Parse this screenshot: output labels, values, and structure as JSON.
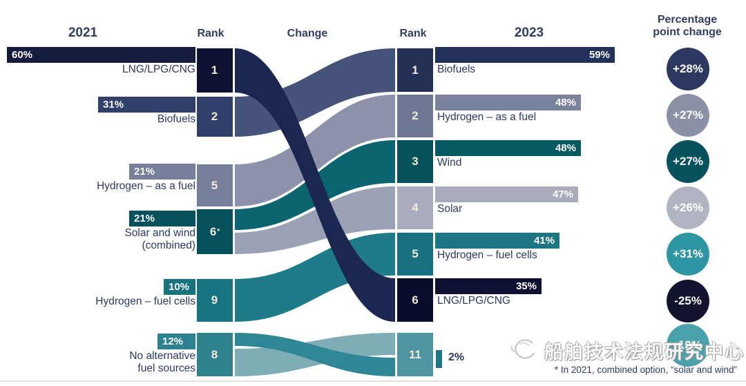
{
  "header": {
    "left_year": "2021",
    "left_rank": "Rank",
    "change": "Change",
    "right_rank": "Rank",
    "right_year": "2023",
    "pct_change_line1": "Percentage",
    "pct_change_line2": "point change"
  },
  "left_rows": [
    {
      "value": 60,
      "value_label": "60%",
      "name": "LNG/LPG/CNG",
      "name2": "",
      "rank": "1",
      "rank_sup": ""
    },
    {
      "value": 31,
      "value_label": "31%",
      "name": "Biofuels",
      "name2": "",
      "rank": "2",
      "rank_sup": ""
    },
    {
      "value": 21,
      "value_label": "21%",
      "name": "Hydrogen – as a fuel",
      "name2": "",
      "rank": "5",
      "rank_sup": ""
    },
    {
      "value": 21,
      "value_label": "21%",
      "name": "Solar and wind",
      "name2": "(combined)",
      "rank": "6",
      "rank_sup": "*"
    },
    {
      "value": 10,
      "value_label": "10%",
      "name": "Hydrogen – fuel cells",
      "name2": "",
      "rank": "9",
      "rank_sup": ""
    },
    {
      "value": 12,
      "value_label": "12%",
      "name": "No alternative",
      "name2": "fuel sources",
      "rank": "8",
      "rank_sup": ""
    }
  ],
  "right_rows": [
    {
      "rank": "1",
      "value": 59,
      "value_label": "59%",
      "name": "Biofuels"
    },
    {
      "rank": "2",
      "value": 48,
      "value_label": "48%",
      "name": "Hydrogen – as a fuel"
    },
    {
      "rank": "3",
      "value": 48,
      "value_label": "48%",
      "name": "Wind"
    },
    {
      "rank": "4",
      "value": 47,
      "value_label": "47%",
      "name": "Solar"
    },
    {
      "rank": "5",
      "value": 41,
      "value_label": "41%",
      "name": "Hydrogen – fuel cells"
    },
    {
      "rank": "6",
      "value": 35,
      "value_label": "35%",
      "name": "LNG/LPG/CNG"
    },
    {
      "rank": "11",
      "value": 2,
      "value_label": "2%",
      "name": ""
    }
  ],
  "pct_changes": [
    "+28%",
    "+27%",
    "+27%",
    "+26%",
    "+31%",
    "-25%",
    "-10%"
  ],
  "footnote": "* In 2021, combined option, “solar and wind”",
  "watermark_text": "船舶技术法规研究中心",
  "colors": {
    "left_bars": [
      "#161b40",
      "#31406a",
      "#777e99",
      "#07515c",
      "#187380",
      "#2e8290"
    ],
    "left_boxes": [
      "#0d1132",
      "#31406a",
      "#777e99",
      "#07515c",
      "#187380",
      "#2e8290"
    ],
    "right_bars": [
      "#23305a",
      "#7b829e",
      "#055a64",
      "#a7abbc",
      "#1b7583",
      "#0d1031",
      "#1d7684"
    ],
    "right_boxes": [
      "#253057",
      "#6f7793",
      "#07515c",
      "#a7abbc",
      "#17717f",
      "#0a0d2c",
      "#4e96a2"
    ],
    "circles": [
      "#2c3860",
      "#8a90a6",
      "#07525d",
      "#b1b4c2",
      "#2e95a2",
      "#12142f",
      "#4aa0ab"
    ],
    "flows": {
      "a": "#1b2750",
      "b": "#46547c",
      "c": "#8b92a9",
      "d": "#0c6470",
      "e": "#9ba1b5",
      "f": "#1f7b8a",
      "g_dark": "#2f8795",
      "g_light": "#7fadb6"
    }
  },
  "chart_data": {
    "type": "sankey",
    "columns": [
      "2021",
      "Rank",
      "Change",
      "Rank",
      "2023",
      "Percentage point change"
    ],
    "items": [
      {
        "fuel": "LNG/LPG/CNG",
        "pct_2021": 60,
        "rank_2021": "1",
        "pct_2023": 35,
        "rank_2023": "6",
        "pp_change": "-25%"
      },
      {
        "fuel": "Biofuels",
        "pct_2021": 31,
        "rank_2021": "2",
        "pct_2023": 59,
        "rank_2023": "1",
        "pp_change": "+28%"
      },
      {
        "fuel": "Hydrogen – as a fuel",
        "pct_2021": 21,
        "rank_2021": "5",
        "pct_2023": 48,
        "rank_2023": "2",
        "pp_change": "+27%"
      },
      {
        "fuel": "Wind",
        "pct_2021": 21,
        "rank_2021": "6*",
        "pct_2023": 48,
        "rank_2023": "3",
        "pp_change": "+27%"
      },
      {
        "fuel": "Solar",
        "pct_2021": 21,
        "rank_2021": "6*",
        "pct_2023": 47,
        "rank_2023": "4",
        "pp_change": "+26%"
      },
      {
        "fuel": "Hydrogen – fuel cells",
        "pct_2021": 10,
        "rank_2021": "9",
        "pct_2023": 41,
        "rank_2023": "5",
        "pp_change": "+31%"
      },
      {
        "fuel": "No alternative fuel sources",
        "pct_2021": 12,
        "rank_2021": "8",
        "pct_2023": 2,
        "rank_2023": "11",
        "pp_change": "-10%"
      }
    ],
    "footnote": "* In 2021, combined option, “solar and wind”"
  }
}
